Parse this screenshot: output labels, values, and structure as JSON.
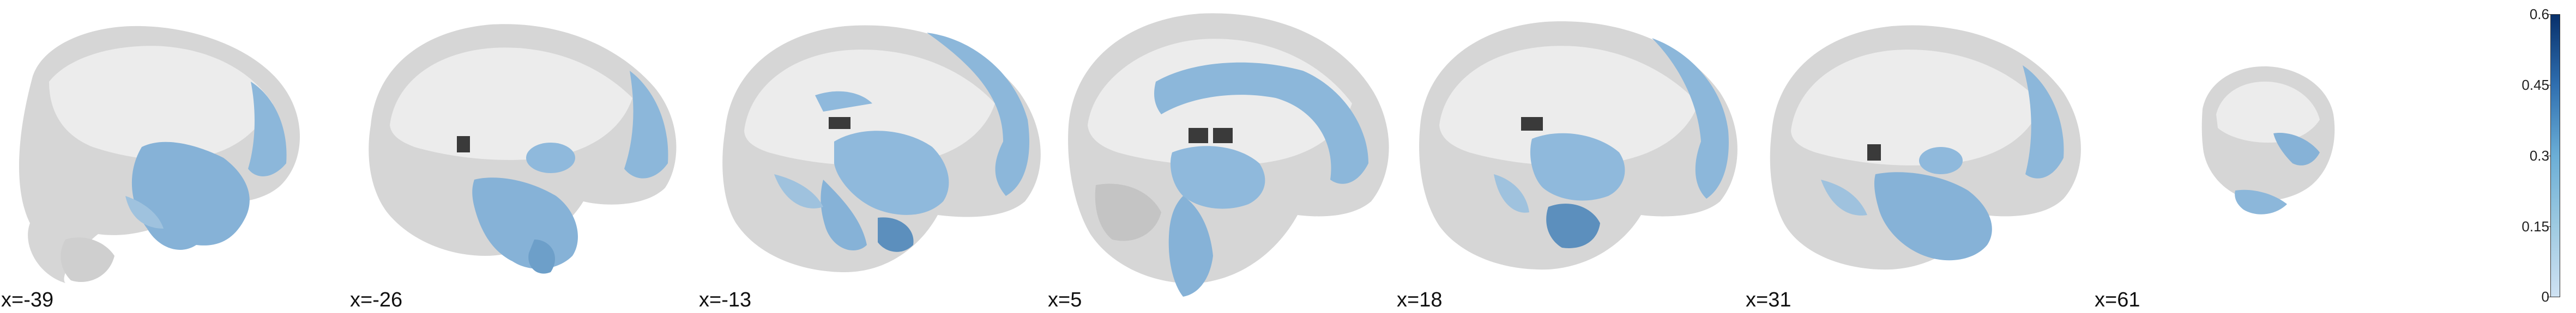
{
  "figure": {
    "panels": [
      {
        "label": "x=-39"
      },
      {
        "label": "x=-26"
      },
      {
        "label": "x=-13"
      },
      {
        "label": "x=5"
      },
      {
        "label": "x=18"
      },
      {
        "label": "x=31"
      },
      {
        "label": "x=61"
      }
    ],
    "colorbar": {
      "ticks": [
        "0.6",
        "0.45",
        "0.3",
        "0.15",
        "0"
      ],
      "min": 0,
      "max": 0.6,
      "colors": {
        "low": "#cfe2f3",
        "mid": "#6baed6",
        "high": "#08306b"
      }
    },
    "colors": {
      "brain": "#d4d4d4",
      "brain_light": "#ececec",
      "overlay": "#7fb0d8",
      "ventricle": "#3a3a3a"
    }
  }
}
